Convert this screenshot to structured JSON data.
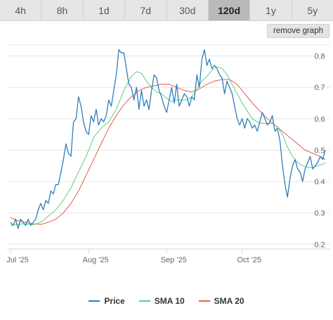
{
  "tabs": [
    {
      "label": "4h",
      "active": false
    },
    {
      "label": "8h",
      "active": false
    },
    {
      "label": "1d",
      "active": false
    },
    {
      "label": "7d",
      "active": false
    },
    {
      "label": "30d",
      "active": false
    },
    {
      "label": "120d",
      "active": true
    },
    {
      "label": "1y",
      "active": false
    },
    {
      "label": "5y",
      "active": false
    }
  ],
  "remove_graph_label": "remove graph",
  "chart_data": {
    "type": "line",
    "x_ticks": [
      {
        "label": "Jul '25",
        "day": 0
      },
      {
        "label": "Aug '25",
        "day": 31
      },
      {
        "label": "Sep '25",
        "day": 62
      },
      {
        "label": "Oct '25",
        "day": 92
      }
    ],
    "y_ticks": [
      0.2,
      0.3,
      0.4,
      0.5,
      0.6,
      0.7,
      0.8
    ],
    "ylim": [
      0.185,
      0.835
    ],
    "xlim": [
      -1,
      128
    ],
    "grid": true,
    "legend": "bottom-center",
    "series": [
      {
        "name": "Price",
        "color": "#2f7ebc",
        "points": [
          [
            0,
            0.27
          ],
          [
            1,
            0.26
          ],
          [
            2,
            0.28
          ],
          [
            3,
            0.25
          ],
          [
            4,
            0.28
          ],
          [
            5,
            0.27
          ],
          [
            6,
            0.26
          ],
          [
            7,
            0.28
          ],
          [
            8,
            0.26
          ],
          [
            9,
            0.27
          ],
          [
            10,
            0.28
          ],
          [
            11,
            0.31
          ],
          [
            12,
            0.33
          ],
          [
            13,
            0.31
          ],
          [
            14,
            0.34
          ],
          [
            15,
            0.33
          ],
          [
            16,
            0.37
          ],
          [
            17,
            0.36
          ],
          [
            18,
            0.39
          ],
          [
            19,
            0.39
          ],
          [
            20,
            0.43
          ],
          [
            21,
            0.47
          ],
          [
            22,
            0.52
          ],
          [
            23,
            0.49
          ],
          [
            24,
            0.48
          ],
          [
            25,
            0.59
          ],
          [
            26,
            0.6
          ],
          [
            27,
            0.67
          ],
          [
            28,
            0.64
          ],
          [
            29,
            0.59
          ],
          [
            30,
            0.56
          ],
          [
            31,
            0.55
          ],
          [
            32,
            0.61
          ],
          [
            33,
            0.59
          ],
          [
            34,
            0.63
          ],
          [
            35,
            0.58
          ],
          [
            36,
            0.6
          ],
          [
            37,
            0.59
          ],
          [
            38,
            0.61
          ],
          [
            39,
            0.66
          ],
          [
            40,
            0.64
          ],
          [
            41,
            0.69
          ],
          [
            42,
            0.74
          ],
          [
            43,
            0.82
          ],
          [
            44,
            0.81
          ],
          [
            45,
            0.81
          ],
          [
            46,
            0.76
          ],
          [
            47,
            0.71
          ],
          [
            48,
            0.7
          ],
          [
            49,
            0.66
          ],
          [
            50,
            0.7
          ],
          [
            51,
            0.63
          ],
          [
            52,
            0.69
          ],
          [
            53,
            0.64
          ],
          [
            54,
            0.66
          ],
          [
            55,
            0.63
          ],
          [
            56,
            0.69
          ],
          [
            57,
            0.74
          ],
          [
            58,
            0.73
          ],
          [
            59,
            0.69
          ],
          [
            60,
            0.67
          ],
          [
            61,
            0.64
          ],
          [
            62,
            0.62
          ],
          [
            63,
            0.66
          ],
          [
            64,
            0.7
          ],
          [
            65,
            0.65
          ],
          [
            66,
            0.71
          ],
          [
            67,
            0.64
          ],
          [
            68,
            0.66
          ],
          [
            69,
            0.68
          ],
          [
            70,
            0.67
          ],
          [
            71,
            0.64
          ],
          [
            72,
            0.67
          ],
          [
            73,
            0.66
          ],
          [
            74,
            0.74
          ],
          [
            75,
            0.7
          ],
          [
            76,
            0.79
          ],
          [
            77,
            0.82
          ],
          [
            78,
            0.77
          ],
          [
            79,
            0.79
          ],
          [
            80,
            0.76
          ],
          [
            81,
            0.77
          ],
          [
            82,
            0.76
          ],
          [
            83,
            0.74
          ],
          [
            84,
            0.73
          ],
          [
            85,
            0.68
          ],
          [
            86,
            0.72
          ],
          [
            87,
            0.7
          ],
          [
            88,
            0.68
          ],
          [
            89,
            0.64
          ],
          [
            90,
            0.6
          ],
          [
            91,
            0.58
          ],
          [
            92,
            0.6
          ],
          [
            93,
            0.57
          ],
          [
            94,
            0.6
          ],
          [
            95,
            0.59
          ],
          [
            96,
            0.57
          ],
          [
            97,
            0.58
          ],
          [
            98,
            0.56
          ],
          [
            99,
            0.59
          ],
          [
            100,
            0.62
          ],
          [
            101,
            0.6
          ],
          [
            102,
            0.58
          ],
          [
            103,
            0.59
          ],
          [
            104,
            0.61
          ],
          [
            105,
            0.56
          ],
          [
            106,
            0.57
          ],
          [
            107,
            0.53
          ],
          [
            108,
            0.45
          ],
          [
            109,
            0.39
          ],
          [
            110,
            0.35
          ],
          [
            111,
            0.41
          ],
          [
            112,
            0.45
          ],
          [
            113,
            0.47
          ],
          [
            114,
            0.44
          ],
          [
            115,
            0.43
          ],
          [
            116,
            0.4
          ],
          [
            117,
            0.44
          ],
          [
            118,
            0.46
          ],
          [
            119,
            0.48
          ],
          [
            120,
            0.44
          ],
          [
            121,
            0.45
          ],
          [
            122,
            0.46
          ],
          [
            123,
            0.48
          ],
          [
            124,
            0.47
          ],
          [
            125,
            0.5
          ]
        ]
      },
      {
        "name": "SMA 10",
        "color": "#5fcf79",
        "points": [
          [
            0,
            0.26
          ],
          [
            5,
            0.265
          ],
          [
            9,
            0.262
          ],
          [
            12,
            0.27
          ],
          [
            15,
            0.29
          ],
          [
            18,
            0.31
          ],
          [
            21,
            0.34
          ],
          [
            24,
            0.38
          ],
          [
            27,
            0.43
          ],
          [
            30,
            0.48
          ],
          [
            33,
            0.54
          ],
          [
            36,
            0.57
          ],
          [
            39,
            0.59
          ],
          [
            42,
            0.63
          ],
          [
            45,
            0.69
          ],
          [
            48,
            0.735
          ],
          [
            50,
            0.75
          ],
          [
            52,
            0.745
          ],
          [
            54,
            0.72
          ],
          [
            56,
            0.7
          ],
          [
            58,
            0.685
          ],
          [
            60,
            0.68
          ],
          [
            62,
            0.665
          ],
          [
            64,
            0.655
          ],
          [
            66,
            0.66
          ],
          [
            68,
            0.66
          ],
          [
            70,
            0.66
          ],
          [
            72,
            0.67
          ],
          [
            74,
            0.695
          ],
          [
            76,
            0.72
          ],
          [
            78,
            0.735
          ],
          [
            80,
            0.755
          ],
          [
            82,
            0.765
          ],
          [
            84,
            0.76
          ],
          [
            86,
            0.74
          ],
          [
            88,
            0.71
          ],
          [
            90,
            0.68
          ],
          [
            92,
            0.65
          ],
          [
            94,
            0.625
          ],
          [
            96,
            0.6
          ],
          [
            98,
            0.59
          ],
          [
            100,
            0.585
          ],
          [
            102,
            0.585
          ],
          [
            104,
            0.585
          ],
          [
            106,
            0.575
          ],
          [
            108,
            0.55
          ],
          [
            110,
            0.51
          ],
          [
            112,
            0.48
          ],
          [
            114,
            0.46
          ],
          [
            116,
            0.45
          ],
          [
            118,
            0.445
          ],
          [
            120,
            0.445
          ],
          [
            122,
            0.45
          ],
          [
            124,
            0.455
          ],
          [
            125,
            0.46
          ]
        ]
      },
      {
        "name": "SMA 20",
        "color": "#e85a4f",
        "points": [
          [
            0,
            0.285
          ],
          [
            3,
            0.275
          ],
          [
            6,
            0.27
          ],
          [
            9,
            0.265
          ],
          [
            12,
            0.263
          ],
          [
            15,
            0.27
          ],
          [
            18,
            0.28
          ],
          [
            21,
            0.3
          ],
          [
            24,
            0.33
          ],
          [
            27,
            0.37
          ],
          [
            30,
            0.42
          ],
          [
            33,
            0.47
          ],
          [
            36,
            0.52
          ],
          [
            39,
            0.57
          ],
          [
            42,
            0.61
          ],
          [
            45,
            0.645
          ],
          [
            48,
            0.67
          ],
          [
            51,
            0.69
          ],
          [
            54,
            0.7
          ],
          [
            57,
            0.705
          ],
          [
            60,
            0.71
          ],
          [
            63,
            0.71
          ],
          [
            66,
            0.7
          ],
          [
            69,
            0.69
          ],
          [
            72,
            0.685
          ],
          [
            75,
            0.695
          ],
          [
            78,
            0.71
          ],
          [
            81,
            0.72
          ],
          [
            84,
            0.725
          ],
          [
            87,
            0.725
          ],
          [
            90,
            0.71
          ],
          [
            93,
            0.68
          ],
          [
            96,
            0.65
          ],
          [
            99,
            0.625
          ],
          [
            102,
            0.6
          ],
          [
            105,
            0.58
          ],
          [
            108,
            0.56
          ],
          [
            111,
            0.54
          ],
          [
            114,
            0.52
          ],
          [
            117,
            0.5
          ],
          [
            120,
            0.49
          ],
          [
            123,
            0.48
          ],
          [
            125,
            0.47
          ]
        ]
      }
    ]
  }
}
